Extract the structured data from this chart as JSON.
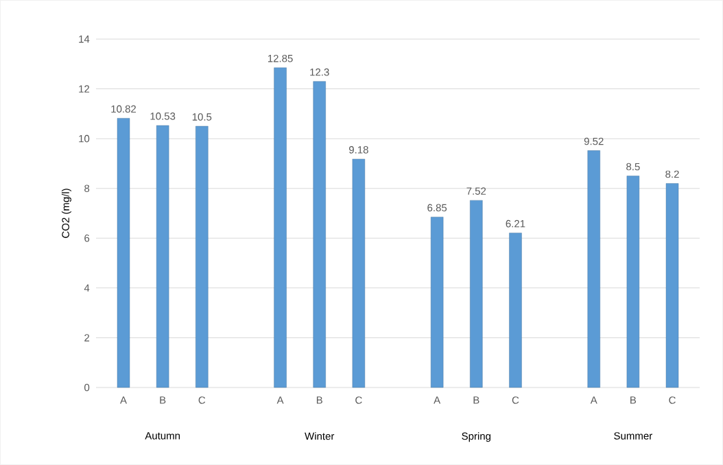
{
  "chart_data": {
    "type": "bar",
    "ylabel": "CO2 (mg/l)",
    "categories": [
      "A",
      "B",
      "C",
      null,
      "A",
      "B",
      "C",
      null,
      "A",
      "B",
      "C",
      null,
      "A",
      "B",
      "C"
    ],
    "values": [
      10.82,
      10.53,
      10.5,
      null,
      12.85,
      12.3,
      9.18,
      null,
      6.85,
      7.52,
      6.21,
      null,
      9.52,
      8.5,
      8.2
    ],
    "color": "#5b9bd5",
    "ylim": [
      0,
      14
    ],
    "yticks": [
      0,
      2,
      4,
      6,
      8,
      10,
      12,
      14
    ],
    "grid": "y",
    "data_labels": true,
    "annotations": [
      "Autumn",
      "Winter",
      "Spring",
      "Summer"
    ]
  }
}
